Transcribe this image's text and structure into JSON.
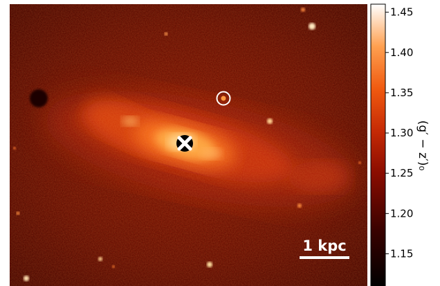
{
  "image": {
    "description_colormap": "gist_heat"
  },
  "scale_bar": {
    "label": "1 kpc"
  },
  "colorbar": {
    "ticks": [
      {
        "value": 1.15,
        "label": "1.15"
      },
      {
        "value": 1.2,
        "label": "1.20"
      },
      {
        "value": 1.25,
        "label": "1.25"
      },
      {
        "value": 1.3,
        "label": "1.30"
      },
      {
        "value": 1.35,
        "label": "1.35"
      },
      {
        "value": 1.4,
        "label": "1.40"
      },
      {
        "value": 1.45,
        "label": "1.45"
      }
    ],
    "range": [
      1.11,
      1.46
    ],
    "label": "(g′ − z′)₀"
  },
  "colors": {
    "background_dark": "#6e0c02",
    "disk": "#c52a05",
    "bulge": "#ff9a3a",
    "core": "#fff1cc",
    "circle_marker": "#ffffff",
    "cross_marker": "#ffffff"
  },
  "markers": {
    "nucleus": "cross-marker",
    "source": "circle-marker"
  }
}
